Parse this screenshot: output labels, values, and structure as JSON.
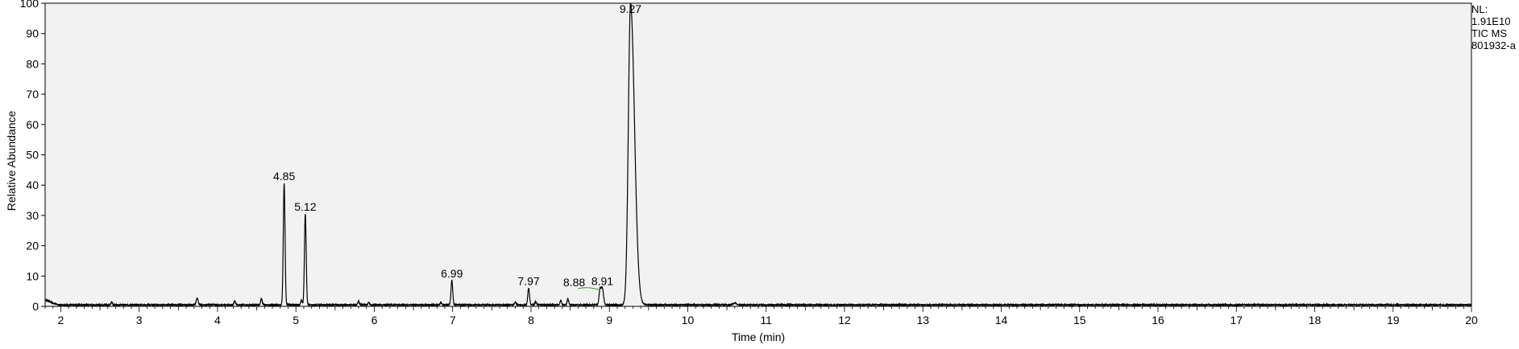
{
  "info": {
    "nl_label": "NL:",
    "nl_value": "1.91E10",
    "trace": "TIC  MS",
    "sample": "801932-a"
  },
  "chart_data": {
    "type": "line",
    "xlabel": "Time (min)",
    "ylabel": "Relative Abundance",
    "xlim": [
      1.8,
      20
    ],
    "ylim": [
      0,
      100
    ],
    "x_ticks": [
      2,
      3,
      4,
      5,
      6,
      7,
      8,
      9,
      10,
      11,
      12,
      13,
      14,
      15,
      16,
      17,
      18,
      19,
      20
    ],
    "y_ticks": [
      0,
      10,
      20,
      30,
      40,
      50,
      60,
      70,
      80,
      90,
      100
    ],
    "grid": false,
    "peaks": [
      {
        "rt": 1.8,
        "height": 1.6,
        "width": 0.07
      },
      {
        "rt": 2.65,
        "height": 0.8,
        "width": 0.01
      },
      {
        "rt": 3.74,
        "height": 2.3,
        "width": 0.012
      },
      {
        "rt": 4.22,
        "height": 1.3,
        "width": 0.01
      },
      {
        "rt": 4.56,
        "height": 2.0,
        "width": 0.01
      },
      {
        "rt": 4.85,
        "height": 40,
        "width": 0.011
      },
      {
        "rt": 5.07,
        "height": 1.5,
        "width": 0.01
      },
      {
        "rt": 5.12,
        "height": 30,
        "width": 0.011
      },
      {
        "rt": 5.8,
        "height": 1.2,
        "width": 0.01
      },
      {
        "rt": 5.93,
        "height": 0.8,
        "width": 0.01
      },
      {
        "rt": 6.85,
        "height": 0.8,
        "width": 0.01
      },
      {
        "rt": 6.99,
        "height": 8,
        "width": 0.011
      },
      {
        "rt": 7.8,
        "height": 0.9,
        "width": 0.01
      },
      {
        "rt": 7.97,
        "height": 5.5,
        "width": 0.011
      },
      {
        "rt": 8.06,
        "height": 1.0,
        "width": 0.01
      },
      {
        "rt": 8.38,
        "height": 1.5,
        "width": 0.01
      },
      {
        "rt": 8.47,
        "height": 2.0,
        "width": 0.01
      },
      {
        "rt": 8.88,
        "height": 4.8,
        "width": 0.012
      },
      {
        "rt": 8.91,
        "height": 5.5,
        "width": 0.015
      },
      {
        "rt": 9.27,
        "height": 99.5,
        "width": 0.028
      },
      {
        "rt": 10.6,
        "height": 0.6,
        "width": 0.02
      }
    ],
    "peak_labels": [
      {
        "rt": 4.85,
        "label": "4.85",
        "y": 40
      },
      {
        "rt": 5.12,
        "label": "5.12",
        "y": 30
      },
      {
        "rt": 6.99,
        "label": "6.99",
        "y": 8
      },
      {
        "rt": 7.97,
        "label": "7.97",
        "y": 5.5
      },
      {
        "rt": 8.88,
        "label": "8.88",
        "y": 5
      },
      {
        "rt": 8.91,
        "label": "8.91",
        "y": 5.5
      },
      {
        "rt": 9.27,
        "label": "9.27",
        "y": 100
      }
    ],
    "integration_baseline": {
      "from_rt": 8.6,
      "to_rt": 8.88,
      "color": "#2e9b2e"
    },
    "colors": {
      "background": "#f2f2f2",
      "trace": "#000000",
      "frame": "#000000"
    }
  }
}
